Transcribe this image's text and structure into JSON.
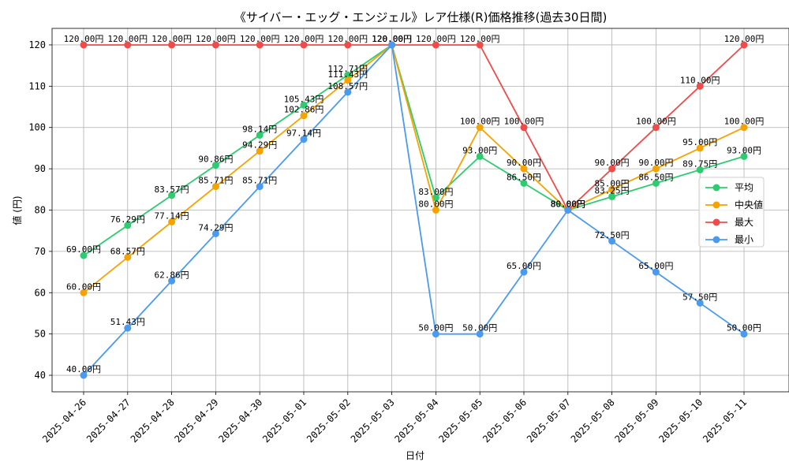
{
  "chart_data": {
    "type": "line",
    "title": "《サイバー・エッグ・エンジェル》レア仕様(R)価格推移(過去30日間)",
    "xlabel": "日付",
    "ylabel": "値 (円)",
    "ylim": [
      36,
      124
    ],
    "yticks": [
      40,
      50,
      60,
      70,
      80,
      90,
      100,
      110,
      120
    ],
    "grid": true,
    "legend_position": "center-right",
    "value_suffix": "円",
    "categories": [
      "2025-04-26",
      "2025-04-27",
      "2025-04-28",
      "2025-04-29",
      "2025-04-30",
      "2025-05-01",
      "2025-05-02",
      "2025-05-03",
      "2025-05-04",
      "2025-05-05",
      "2025-05-06",
      "2025-05-07",
      "2025-05-08",
      "2025-05-09",
      "2025-05-10",
      "2025-05-11"
    ],
    "series": [
      {
        "name": "平均",
        "color": "#2ecc71",
        "values": [
          69.0,
          76.29,
          83.57,
          90.86,
          98.14,
          105.43,
          112.71,
          120.0,
          83.0,
          93.0,
          86.5,
          80.0,
          83.25,
          86.5,
          89.75,
          93.0
        ]
      },
      {
        "name": "中央値",
        "color": "#f5a300",
        "values": [
          60.0,
          68.57,
          77.14,
          85.71,
          94.29,
          102.86,
          111.43,
          120.0,
          80.0,
          100.0,
          90.0,
          80.0,
          85.0,
          90.0,
          95.0,
          100.0
        ]
      },
      {
        "name": "最大",
        "color": "#ef4b4b",
        "values": [
          120.0,
          120.0,
          120.0,
          120.0,
          120.0,
          120.0,
          120.0,
          120.0,
          120.0,
          120.0,
          100.0,
          80.0,
          90.0,
          100.0,
          110.0,
          120.0
        ]
      },
      {
        "name": "最小",
        "color": "#4a9af0",
        "values": [
          40.0,
          51.43,
          62.86,
          74.29,
          85.71,
          97.14,
          108.57,
          120.0,
          50.0,
          50.0,
          65.0,
          80.0,
          72.5,
          65.0,
          57.5,
          50.0
        ]
      }
    ]
  }
}
